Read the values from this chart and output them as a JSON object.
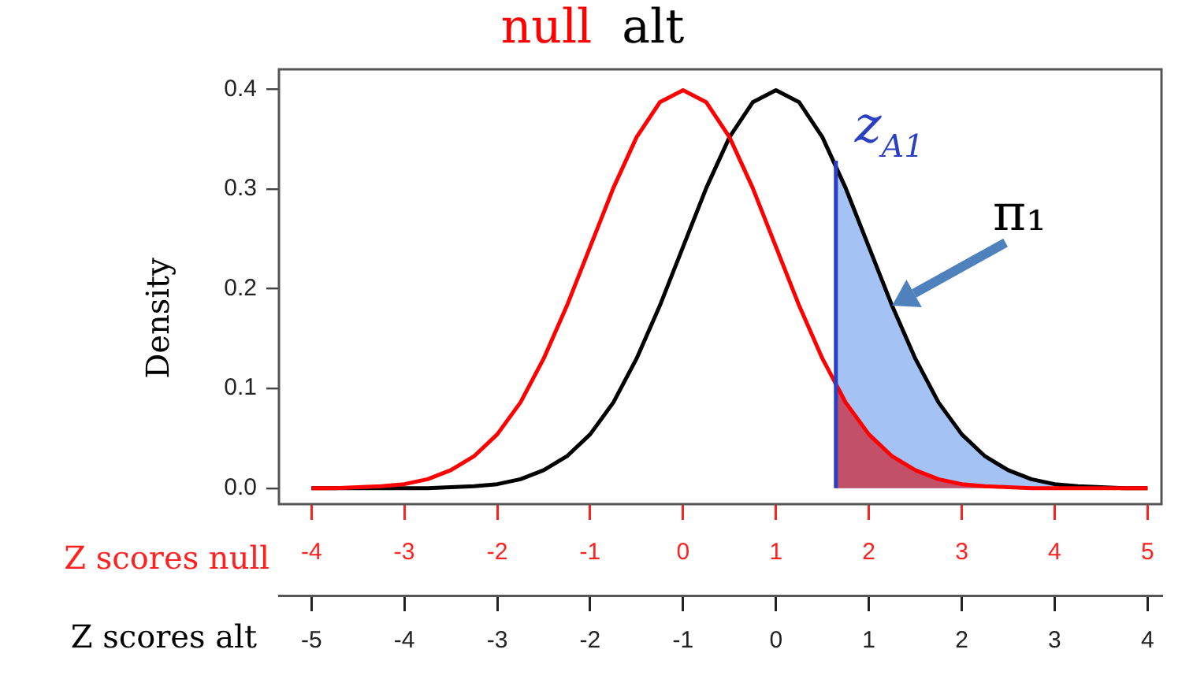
{
  "chart_data": {
    "type": "line",
    "xlabel": "Z scores null",
    "x2label": "Z scores alt",
    "ylabel": "Density",
    "xlim": [
      -4.35,
      5.15
    ],
    "xticks": [
      -4,
      -3,
      -2,
      -1,
      0,
      1,
      2,
      3,
      4,
      5
    ],
    "x2lim": [
      -5.35,
      4.15
    ],
    "x2ticks": [
      -5,
      -4,
      -3,
      -2,
      -1,
      0,
      1,
      2,
      3,
      4
    ],
    "ylim": [
      -0.016,
      0.42
    ],
    "yticks": [
      {
        "value": 0,
        "label": "0.0"
      },
      0.1,
      0.2,
      0.3,
      0.4
    ],
    "grid": false,
    "legend": "top",
    "marker": "none",
    "line_style": "solid",
    "series": [
      {
        "type": "area",
        "color": "#a4c2f4",
        "x": [
          1.645,
          1.75,
          2,
          2.25,
          2.5,
          2.75,
          3,
          3.25,
          3.5,
          3.75,
          4,
          4.25,
          4.5,
          4.75,
          5
        ],
        "values": [
          0.324,
          0.301,
          0.242,
          0.183,
          0.13,
          0.086,
          0.054,
          0.032,
          0.018,
          0.009,
          0.004,
          0.002,
          0.001,
          0,
          0
        ]
      },
      {
        "type": "area",
        "color": "#c25068",
        "x": [
          1.645,
          1.75,
          2,
          2.25,
          2.5,
          2.75,
          3,
          3.25,
          3.5,
          3.75,
          4,
          4.25,
          4.5,
          4.75,
          5
        ],
        "values": [
          0.103,
          0.086,
          0.054,
          0.032,
          0.018,
          0.009,
          0.004,
          0.002,
          0.001,
          0,
          0,
          0,
          0,
          0,
          0
        ]
      },
      {
        "name": "null",
        "color": "#ff0000",
        "x": [
          -4,
          -3.75,
          -3.5,
          -3.25,
          -3,
          -2.75,
          -2.5,
          -2.25,
          -2,
          -1.75,
          -1.5,
          -1.25,
          -1,
          -0.75,
          -0.5,
          -0.25,
          0,
          0.25,
          0.5,
          0.75,
          1,
          1.25,
          1.5,
          1.75,
          2,
          2.25,
          2.5,
          2.75,
          3,
          3.25,
          3.5,
          3.75,
          4,
          4.25,
          4.5,
          4.75,
          5
        ],
        "values": [
          0,
          0,
          0.001,
          0.002,
          0.004,
          0.009,
          0.018,
          0.032,
          0.054,
          0.086,
          0.13,
          0.183,
          0.242,
          0.301,
          0.352,
          0.387,
          0.399,
          0.387,
          0.352,
          0.301,
          0.242,
          0.183,
          0.13,
          0.086,
          0.054,
          0.032,
          0.018,
          0.009,
          0.004,
          0.002,
          0.001,
          0,
          0,
          0,
          0,
          0,
          0
        ]
      },
      {
        "name": "alt",
        "color": "#000000",
        "x": [
          -4,
          -3.75,
          -3.5,
          -3.25,
          -3,
          -2.75,
          -2.5,
          -2.25,
          -2,
          -1.75,
          -1.5,
          -1.25,
          -1,
          -0.75,
          -0.5,
          -0.25,
          0,
          0.25,
          0.5,
          0.75,
          1,
          1.25,
          1.5,
          1.75,
          2,
          2.25,
          2.5,
          2.75,
          3,
          3.25,
          3.5,
          3.75,
          4,
          4.25,
          4.5,
          4.75,
          5
        ],
        "values": [
          0,
          0,
          0,
          0,
          0,
          0,
          0.001,
          0.002,
          0.004,
          0.009,
          0.018,
          0.032,
          0.054,
          0.086,
          0.13,
          0.183,
          0.242,
          0.301,
          0.352,
          0.387,
          0.399,
          0.387,
          0.352,
          0.301,
          0.242,
          0.183,
          0.13,
          0.086,
          0.054,
          0.032,
          0.018,
          0.009,
          0.004,
          0.002,
          0.001,
          0,
          0
        ]
      }
    ],
    "ref_lines": [
      {
        "axis": "x",
        "value": 1.645,
        "label": "z$_{A1}$",
        "color": "#2a3fc4"
      }
    ],
    "annotations": [
      {
        "text": "π₁",
        "x": 2.25,
        "y": 0.183
      }
    ]
  }
}
